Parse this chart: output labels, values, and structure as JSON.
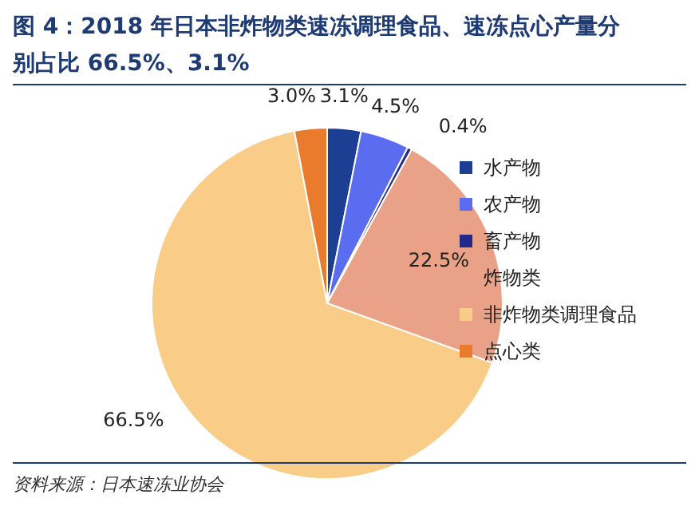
{
  "chart_data": {
    "type": "pie",
    "title": "图 4：2018 年日本非炸物类速冻调理食品、速冻点心产量分别占比 66.5%、3.1%",
    "categories": [
      "水产物",
      "农产物",
      "畜产物",
      "炸物类",
      "非炸物类调理食品",
      "点心类"
    ],
    "values": [
      3.1,
      4.5,
      0.4,
      22.5,
      66.5,
      3.0
    ],
    "colors": [
      "#1c3f94",
      "#5a6cf0",
      "#23288a",
      "#e9a287",
      "#f9cd88",
      "#ea7b2c"
    ],
    "value_labels": [
      "3.1%",
      "4.5%",
      "0.4%",
      "22.5%",
      "66.5%",
      "3.0%"
    ],
    "legend": "right",
    "annotations": [
      "资料来源：日本速冻业协会"
    ]
  }
}
